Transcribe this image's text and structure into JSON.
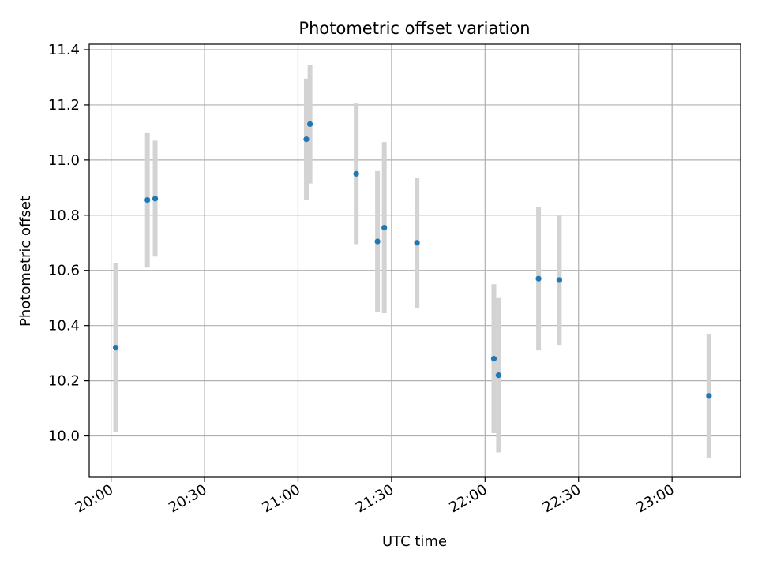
{
  "chart_data": {
    "type": "scatter",
    "title": "Photometric offset variation",
    "xlabel": "UTC time",
    "ylabel": "Photometric offset",
    "grid": true,
    "x_unit": "time of day (HH:MM, UTC)",
    "xlim": [
      "19:53",
      "23:22"
    ],
    "ylim": [
      9.85,
      11.42
    ],
    "x_ticks": [
      "20:00",
      "20:30",
      "21:00",
      "21:30",
      "22:00",
      "22:30",
      "23:00"
    ],
    "y_ticks": [
      "10.0",
      "10.2",
      "10.4",
      "10.6",
      "10.8",
      "11.0",
      "11.2",
      "11.4"
    ],
    "colors": {
      "point": "#1f77b4",
      "errorbar": "#d3d3d3",
      "grid": "#b0b0b0"
    },
    "points": [
      {
        "x": "20:01:30",
        "y": 10.32,
        "yerr": 0.305
      },
      {
        "x": "20:11:40",
        "y": 10.855,
        "yerr": 0.245
      },
      {
        "x": "20:14:10",
        "y": 10.86,
        "yerr": 0.21
      },
      {
        "x": "21:02:40",
        "y": 11.075,
        "yerr": 0.22
      },
      {
        "x": "21:03:50",
        "y": 11.13,
        "yerr": 0.215
      },
      {
        "x": "21:18:40",
        "y": 10.95,
        "yerr": 0.255
      },
      {
        "x": "21:25:30",
        "y": 10.705,
        "yerr": 0.255
      },
      {
        "x": "21:27:40",
        "y": 10.755,
        "yerr": 0.31
      },
      {
        "x": "21:38:10",
        "y": 10.7,
        "yerr": 0.235
      },
      {
        "x": "22:02:50",
        "y": 10.28,
        "yerr": 0.27
      },
      {
        "x": "22:04:20",
        "y": 10.22,
        "yerr": 0.28
      },
      {
        "x": "22:17:10",
        "y": 10.57,
        "yerr": 0.26
      },
      {
        "x": "22:23:50",
        "y": 10.565,
        "yerr": 0.235
      },
      {
        "x": "23:11:50",
        "y": 10.145,
        "yerr": 0.225
      }
    ]
  }
}
